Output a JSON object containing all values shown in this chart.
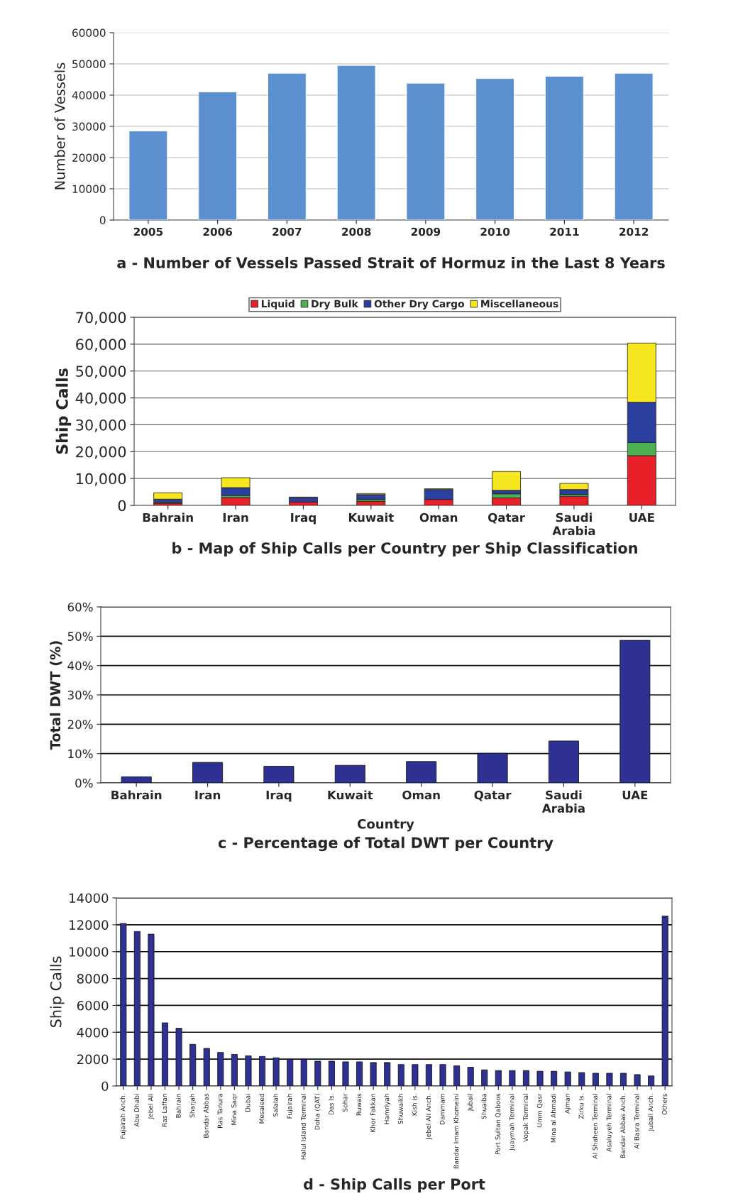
{
  "chart_data": [
    {
      "type": "bar",
      "title": "a - Number of Vessels Passed Strait of Hormuz in the Last 8 Years",
      "ylabel": "Number of Vessels",
      "categories": [
        "2005",
        "2006",
        "2007",
        "2008",
        "2009",
        "2010",
        "2011",
        "2012"
      ],
      "values": [
        28500,
        41000,
        47000,
        49500,
        43800,
        45300,
        46000,
        47000
      ],
      "color": "#5b8fd0",
      "ylim": [
        0,
        60000
      ],
      "yticks": [
        0,
        10000,
        20000,
        30000,
        40000,
        50000,
        60000
      ],
      "grid": "y"
    },
    {
      "type": "bar",
      "title": "b - Map of Ship Calls per Country per Ship Classification",
      "ylabel": "Ship Calls",
      "categories": [
        "Bahrain",
        "Iran",
        "Iraq",
        "Kuwait",
        "Oman",
        "Qatar",
        "Saudi Arabia",
        "UAE"
      ],
      "stacked": true,
      "series": [
        {
          "name": "Liquid",
          "color": "#e8202a",
          "values": [
            800,
            2900,
            1300,
            1500,
            2200,
            2800,
            3400,
            18500
          ]
        },
        {
          "name": "Dry Bulk",
          "color": "#4cb050",
          "values": [
            300,
            800,
            null,
            700,
            null,
            1500,
            700,
            4900
          ]
        },
        {
          "name": "Other Dry Cargo",
          "color": "#2b3f9e",
          "values": [
            1200,
            2900,
            1600,
            1800,
            3700,
            1300,
            1800,
            15000
          ]
        },
        {
          "name": "Miscellaneous",
          "color": "#f5e61e",
          "values": [
            2400,
            3700,
            200,
            400,
            300,
            7000,
            2300,
            22000
          ]
        }
      ],
      "ylim": [
        0,
        70000
      ],
      "yticks": [
        0,
        {
          "value": 10000,
          "label": "10,000"
        },
        {
          "value": 20000,
          "label": "20,000"
        },
        {
          "value": 30000,
          "label": "30,000"
        },
        {
          "value": 40000,
          "label": "40,000"
        },
        {
          "value": 50000,
          "label": "50,000"
        },
        {
          "value": 60000,
          "label": "60,000"
        },
        {
          "value": 70000,
          "label": "70,000"
        }
      ],
      "grid": "y",
      "legend": "top"
    },
    {
      "type": "bar",
      "title": "c - Percentage of Total DWT per Country",
      "ylabel": "Total DWT (%)",
      "xlabel": "Country",
      "categories": [
        "Bahrain",
        "Iran",
        "Iraq",
        "Kuwait",
        "Oman",
        "Qatar",
        "Saudi Arabia",
        "UAE"
      ],
      "values": [
        2.1,
        7.0,
        5.7,
        6.0,
        7.3,
        10.1,
        14.3,
        48.6
      ],
      "color": "#2e3192",
      "ylim": [
        0,
        60
      ],
      "yticks": [
        {
          "value": 0,
          "label": "0%"
        },
        {
          "value": 10,
          "label": "10%"
        },
        {
          "value": 20,
          "label": "20%"
        },
        {
          "value": 30,
          "label": "30%"
        },
        {
          "value": 40,
          "label": "40%"
        },
        {
          "value": 50,
          "label": "50%"
        },
        {
          "value": 60,
          "label": "60%"
        }
      ],
      "grid": "y"
    },
    {
      "type": "bar",
      "title": "d - Ship Calls per Port",
      "ylabel": "Ship Calls",
      "categories": [
        "Fujairah Anch.",
        "Abu Dhabi",
        "Jebel Ali",
        "Ras Laffan",
        "Bahrain",
        "Sharjah",
        "Bandar Abbas",
        "Ras Tanura",
        "Mina Saqr",
        "Dubai",
        "Mesaieed",
        "Salalah",
        "Fujairah",
        "Halul Island Terminal",
        "Doha (QAT)",
        "Das Is.",
        "Sohar",
        "Ruwais",
        "Khor Fakkan",
        "Hamriyah",
        "Shuwaikh",
        "Kish is.",
        "Jebel Ali Anch.",
        "Dammam",
        "Bandar Imam Khomeini",
        "Jubail",
        "Shuaiba",
        "Port Sultan Qaboos",
        "Juaymah Terminal",
        "Vopak Terminal",
        "Umm Qasr",
        "Mina al Ahmadi",
        "Ajman",
        "Zirku Is.",
        "Al Shaheen Terminal",
        "Asaluyeh Terminal",
        "Bandar Abbas Anch.",
        "Al Basra Terminal",
        "Jubail Anch.",
        "Others"
      ],
      "values": [
        12100,
        11500,
        11300,
        4700,
        4300,
        3100,
        2800,
        2500,
        2350,
        2250,
        2200,
        2100,
        2000,
        2000,
        1850,
        1850,
        1800,
        1800,
        1750,
        1750,
        1600,
        1600,
        1600,
        1600,
        1500,
        1400,
        1200,
        1150,
        1150,
        1150,
        1100,
        1100,
        1050,
        1000,
        950,
        950,
        950,
        850,
        750,
        12650
      ],
      "color": "#2e3192",
      "ylim": [
        0,
        14000
      ],
      "yticks": [
        0,
        2000,
        4000,
        6000,
        8000,
        10000,
        12000,
        14000
      ],
      "grid": "y"
    }
  ]
}
